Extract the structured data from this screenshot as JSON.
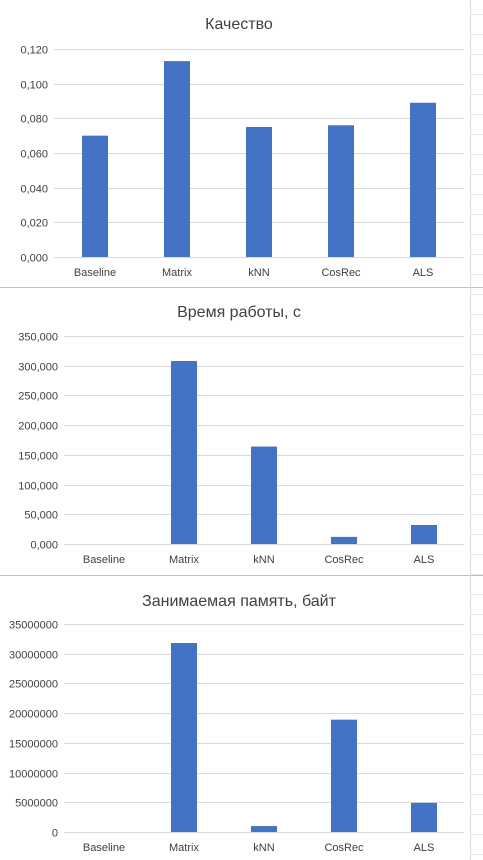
{
  "colors": {
    "bar": "#4472C4",
    "grid": "#D9D9D9",
    "title": "#404040",
    "tick_label": "#404040",
    "separator": "#BFBFBF"
  },
  "chart_data": [
    {
      "type": "bar",
      "title": "Качество",
      "xlabel": "",
      "ylabel": "",
      "categories": [
        "Baseline",
        "Matrix",
        "kNN",
        "CosRec",
        "ALS"
      ],
      "values": [
        0.07,
        0.113,
        0.075,
        0.076,
        0.089
      ],
      "ylim": [
        0,
        0.12
      ],
      "yticks": [
        "0,000",
        "0,020",
        "0,040",
        "0,060",
        "0,080",
        "0,100",
        "0,120"
      ],
      "grid": true,
      "legend": "none"
    },
    {
      "type": "bar",
      "title": "Время работы, с",
      "xlabel": "",
      "ylabel": "",
      "categories": [
        "Baseline",
        "Matrix",
        "kNN",
        "CosRec",
        "ALS"
      ],
      "values": [
        0,
        308,
        164,
        12,
        32
      ],
      "ylim": [
        0,
        350
      ],
      "yticks": [
        "0,000",
        "50,000",
        "100,000",
        "150,000",
        "200,000",
        "250,000",
        "300,000",
        "350,000"
      ],
      "grid": true,
      "legend": "none"
    },
    {
      "type": "bar",
      "title": "Занимаемая память, байт",
      "xlabel": "",
      "ylabel": "",
      "categories": [
        "Baseline",
        "Matrix",
        "kNN",
        "CosRec",
        "ALS"
      ],
      "values": [
        0,
        31800000,
        1000000,
        18900000,
        4900000
      ],
      "ylim": [
        0,
        35000000
      ],
      "yticks": [
        "0",
        "5000000",
        "10000000",
        "15000000",
        "20000000",
        "25000000",
        "30000000",
        "35000000"
      ],
      "grid": true,
      "legend": "none"
    }
  ]
}
